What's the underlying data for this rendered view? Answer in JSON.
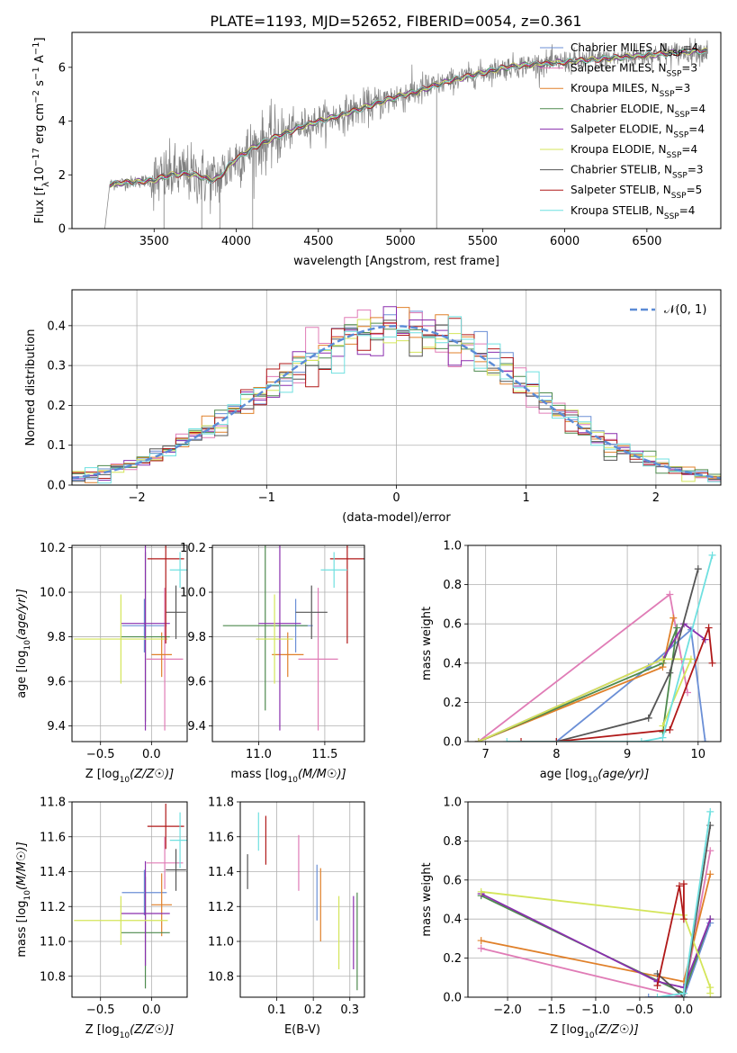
{
  "title": "PLATE=1193, MJD=52652, FIBERID=0054, z=0.361",
  "models": [
    {
      "name": "Chabrier MILES",
      "nssp": "4",
      "color": "#6b8fd6"
    },
    {
      "name": "Salpeter MILES",
      "nssp": "3",
      "color": "#e07cb6"
    },
    {
      "name": "Kroupa MILES",
      "nssp": "3",
      "color": "#e0802a"
    },
    {
      "name": "Chabrier ELODIE",
      "nssp": "4",
      "color": "#4e8a4e"
    },
    {
      "name": "Salpeter ELODIE",
      "nssp": "4",
      "color": "#8a2fae"
    },
    {
      "name": "Kroupa ELODIE",
      "nssp": "4",
      "color": "#d4e55a"
    },
    {
      "name": "Chabrier STELIB",
      "nssp": "3",
      "color": "#555555"
    },
    {
      "name": "Salpeter STELIB",
      "nssp": "5",
      "color": "#b01818"
    },
    {
      "name": "Kroupa STELIB",
      "nssp": "4",
      "color": "#6fe0e0"
    }
  ],
  "chart_data": [
    {
      "id": "spectrum",
      "type": "line",
      "xlabel": "wavelength [Angstrom, rest frame]",
      "ylabel": "Flux [f_λ 10^-17 erg cm^-2 s^-1 A^-1]",
      "xlim": [
        3000,
        6950
      ],
      "ylim": [
        0,
        7.3
      ],
      "xticks": [
        3500,
        4000,
        4500,
        5000,
        5500,
        6000,
        6500
      ],
      "yticks": [
        0,
        2,
        4,
        6
      ],
      "data_color": "#808080",
      "continuum": {
        "x": [
          3200,
          3230,
          3300,
          3400,
          3500,
          3600,
          3700,
          3780,
          3840,
          3900,
          3950,
          4000,
          4100,
          4200,
          4300,
          4400,
          4500,
          4600,
          4700,
          4800,
          4900,
          5000,
          5100,
          5200,
          5300,
          5400,
          5500,
          5600,
          5700,
          5800,
          5900,
          6000,
          6100,
          6200,
          6300,
          6400,
          6500,
          6600,
          6700,
          6800,
          6870
        ],
        "y": [
          0,
          1.65,
          1.7,
          1.75,
          1.8,
          2.0,
          2.05,
          1.95,
          1.8,
          1.9,
          2.3,
          2.6,
          3.0,
          3.3,
          3.55,
          3.8,
          4.0,
          4.15,
          4.35,
          4.55,
          4.75,
          4.95,
          5.1,
          5.3,
          5.5,
          5.65,
          5.8,
          5.95,
          6.05,
          6.1,
          6.15,
          6.2,
          6.25,
          6.3,
          6.35,
          6.4,
          6.45,
          6.5,
          6.55,
          6.6,
          6.6
        ]
      },
      "legend": "top-right"
    },
    {
      "id": "residuals",
      "type": "histogram",
      "xlabel": "(data-model)/error",
      "ylabel": "Normed distribution",
      "xlim": [
        -2.5,
        2.5
      ],
      "ylim": [
        0,
        0.49
      ],
      "xticks": [
        -2,
        -1,
        0,
        1,
        2
      ],
      "yticks": [
        0.0,
        0.1,
        0.2,
        0.3,
        0.4
      ],
      "bin_width": 0.1,
      "reference_label": "𝒩(0, 1)",
      "reference_color": "#5b8bd6",
      "legend": "top-right"
    },
    {
      "id": "age_vs_Z",
      "type": "errorbar",
      "xlabel": "Z [log10(Z/Z☉)]",
      "ylabel": "age  [log10(age/yr)]",
      "xlim": [
        -0.78,
        0.35
      ],
      "ylim": [
        9.33,
        10.21
      ],
      "xticks": [
        -0.5,
        0.0
      ],
      "yticks": [
        9.4,
        9.6,
        9.8,
        10.0,
        10.2
      ],
      "points": [
        {
          "x": -0.07,
          "y": 9.85,
          "xerr": 0.22,
          "yerr": 0.12
        },
        {
          "x": 0.13,
          "y": 9.7,
          "xerr": 0.18,
          "yerr": 0.32
        },
        {
          "x": 0.1,
          "y": 9.72,
          "xerr": 0.1,
          "yerr": 0.1
        },
        {
          "x": -0.06,
          "y": 9.8,
          "xerr": 0.24,
          "yerr": 0.38
        },
        {
          "x": -0.06,
          "y": 9.86,
          "xerr": 0.24,
          "yerr": 0.48
        },
        {
          "x": -0.3,
          "y": 9.79,
          "xerr": 0.46,
          "yerr": 0.2
        },
        {
          "x": 0.24,
          "y": 9.91,
          "xerr": 0.1,
          "yerr": 0.12
        },
        {
          "x": 0.14,
          "y": 10.15,
          "xerr": 0.18,
          "yerr": 0.38
        },
        {
          "x": 0.28,
          "y": 10.1,
          "xerr": 0.1,
          "yerr": 0.08
        }
      ]
    },
    {
      "id": "age_vs_mass",
      "type": "errorbar",
      "xlabel": "mass [log10(M/M☉)]",
      "ylabel": "",
      "xlim": [
        10.65,
        11.8
      ],
      "ylim": [
        9.33,
        10.21
      ],
      "xticks": [
        11.0,
        11.5
      ],
      "yticks": [
        9.4,
        9.6,
        9.8,
        10.0,
        10.2
      ],
      "points": [
        {
          "x": 11.28,
          "y": 9.85,
          "xerr": 0.13,
          "yerr": 0.12
        },
        {
          "x": 11.45,
          "y": 9.7,
          "xerr": 0.15,
          "yerr": 0.32
        },
        {
          "x": 11.22,
          "y": 9.72,
          "xerr": 0.12,
          "yerr": 0.1
        },
        {
          "x": 11.05,
          "y": 9.85,
          "xerr": 0.32,
          "yerr": 0.38
        },
        {
          "x": 11.16,
          "y": 9.86,
          "xerr": 0.16,
          "yerr": 0.48
        },
        {
          "x": 11.12,
          "y": 9.79,
          "xerr": 0.14,
          "yerr": 0.2
        },
        {
          "x": 11.4,
          "y": 9.91,
          "xerr": 0.12,
          "yerr": 0.12
        },
        {
          "x": 11.67,
          "y": 10.15,
          "xerr": 0.13,
          "yerr": 0.38
        },
        {
          "x": 11.57,
          "y": 10.1,
          "xerr": 0.1,
          "yerr": 0.08
        }
      ]
    },
    {
      "id": "weight_vs_age",
      "type": "line",
      "xlabel": "age  [log10(age/yr)]",
      "ylabel": "mass weight",
      "xlim": [
        6.75,
        10.32
      ],
      "ylim": [
        0,
        1.0
      ],
      "xticks": [
        7,
        8,
        9,
        10
      ],
      "yticks": [
        0.0,
        0.2,
        0.4,
        0.6,
        0.8,
        1.0
      ],
      "series": [
        {
          "name": "Chabrier MILES",
          "x": [
            8.0,
            9.3,
            9.9,
            10.1
          ],
          "y": [
            0.0,
            0.38,
            0.57,
            0.0
          ]
        },
        {
          "name": "Salpeter MILES",
          "x": [
            6.9,
            9.6,
            9.85
          ],
          "y": [
            0.0,
            0.75,
            0.25
          ]
        },
        {
          "name": "Kroupa MILES",
          "x": [
            6.9,
            9.5,
            9.65
          ],
          "y": [
            0.0,
            0.38,
            0.63
          ]
        },
        {
          "name": "Chabrier ELODIE",
          "x": [
            6.9,
            9.5,
            9.7,
            9.5
          ],
          "y": [
            0.0,
            0.4,
            0.58,
            0.05
          ]
        },
        {
          "name": "Salpeter ELODIE",
          "x": [
            6.9,
            9.5,
            9.8,
            10.1
          ],
          "y": [
            0.0,
            0.42,
            0.6,
            0.52
          ]
        },
        {
          "name": "Kroupa ELODIE",
          "x": [
            6.9,
            9.5,
            9.9,
            9.5
          ],
          "y": [
            0.0,
            0.42,
            0.42,
            0.08
          ]
        },
        {
          "name": "Chabrier STELIB",
          "x": [
            8.0,
            9.3,
            9.6,
            10.0
          ],
          "y": [
            0.0,
            0.12,
            0.35,
            0.88
          ]
        },
        {
          "name": "Salpeter STELIB",
          "x": [
            7.5,
            8.0,
            9.6,
            10.15,
            10.2
          ],
          "y": [
            0.0,
            0.0,
            0.06,
            0.58,
            0.4
          ]
        },
        {
          "name": "Kroupa STELIB",
          "x": [
            7.3,
            9.2,
            9.5,
            10.2
          ],
          "y": [
            0.0,
            0.0,
            0.02,
            0.95
          ]
        }
      ]
    },
    {
      "id": "mass_vs_Z",
      "type": "errorbar",
      "xlabel": "Z [log10(Z/Z☉)]",
      "ylabel": "mass [log10(M/M☉)]",
      "xlim": [
        -0.78,
        0.35
      ],
      "ylim": [
        10.68,
        11.8
      ],
      "xticks": [
        -0.5,
        0.0
      ],
      "yticks": [
        10.8,
        11.0,
        11.2,
        11.4,
        11.6,
        11.8
      ],
      "points": [
        {
          "x": -0.07,
          "y": 11.28,
          "xerr": 0.22,
          "yerr": 0.13
        },
        {
          "x": 0.13,
          "y": 11.45,
          "xerr": 0.18,
          "yerr": 0.15
        },
        {
          "x": 0.1,
          "y": 11.21,
          "xerr": 0.1,
          "yerr": 0.18
        },
        {
          "x": -0.06,
          "y": 11.05,
          "xerr": 0.24,
          "yerr": 0.32
        },
        {
          "x": -0.06,
          "y": 11.16,
          "xerr": 0.24,
          "yerr": 0.3
        },
        {
          "x": -0.3,
          "y": 11.12,
          "xerr": 0.46,
          "yerr": 0.14
        },
        {
          "x": 0.24,
          "y": 11.41,
          "xerr": 0.1,
          "yerr": 0.12
        },
        {
          "x": 0.14,
          "y": 11.66,
          "xerr": 0.18,
          "yerr": 0.13
        },
        {
          "x": 0.28,
          "y": 11.58,
          "xerr": 0.1,
          "yerr": 0.16
        }
      ]
    },
    {
      "id": "mass_vs_EBV",
      "type": "errorbar",
      "xlabel": "E(B-V)",
      "ylabel": "",
      "xlim": [
        0.0,
        0.34
      ],
      "ylim": [
        10.68,
        11.8
      ],
      "xticks": [
        0.1,
        0.2,
        0.3
      ],
      "yticks": [
        10.8,
        11.0,
        11.2,
        11.4,
        11.6,
        11.8
      ],
      "points": [
        {
          "x": 0.21,
          "y": 11.28,
          "xerr": 0.0,
          "yerr": 0.16
        },
        {
          "x": 0.16,
          "y": 11.45,
          "xerr": 0.0,
          "yerr": 0.16
        },
        {
          "x": 0.22,
          "y": 11.21,
          "xerr": 0.0,
          "yerr": 0.21
        },
        {
          "x": 0.32,
          "y": 11.0,
          "xerr": 0.0,
          "yerr": 0.28
        },
        {
          "x": 0.31,
          "y": 11.05,
          "xerr": 0.0,
          "yerr": 0.21
        },
        {
          "x": 0.27,
          "y": 11.05,
          "xerr": 0.0,
          "yerr": 0.21
        },
        {
          "x": 0.02,
          "y": 11.4,
          "xerr": 0.0,
          "yerr": 0.1
        },
        {
          "x": 0.07,
          "y": 11.58,
          "xerr": 0.0,
          "yerr": 0.14
        },
        {
          "x": 0.05,
          "y": 11.63,
          "xerr": 0.0,
          "yerr": 0.11
        }
      ]
    },
    {
      "id": "weight_vs_Z",
      "type": "line",
      "xlabel": "Z [log10(Z/Z☉)]",
      "ylabel": "mass weight",
      "xlim": [
        -2.45,
        0.42
      ],
      "ylim": [
        0,
        1.0
      ],
      "xticks": [
        -2.0,
        -1.5,
        -1.0,
        -0.5,
        0.0
      ],
      "yticks": [
        0.0,
        0.2,
        0.4,
        0.6,
        0.8,
        1.0
      ],
      "series": [
        {
          "name": "Chabrier MILES",
          "x": [
            -0.4,
            0.0,
            0.3
          ],
          "y": [
            0.0,
            0.0,
            0.38
          ]
        },
        {
          "name": "Salpeter MILES",
          "x": [
            -2.3,
            0.0,
            0.3
          ],
          "y": [
            0.25,
            0.0,
            0.75
          ]
        },
        {
          "name": "Kroupa MILES",
          "x": [
            -2.3,
            0.0,
            0.3
          ],
          "y": [
            0.29,
            0.08,
            0.63
          ]
        },
        {
          "name": "Chabrier ELODIE",
          "x": [
            -2.3,
            0.0,
            0.3
          ],
          "y": [
            0.52,
            0.02,
            0.4
          ]
        },
        {
          "name": "Salpeter ELODIE",
          "x": [
            -2.3,
            -0.3,
            0.0,
            0.3
          ],
          "y": [
            0.53,
            0.08,
            0.05,
            0.4
          ]
        },
        {
          "name": "Kroupa ELODIE",
          "x": [
            -2.3,
            0.0,
            0.3,
            0.3
          ],
          "y": [
            0.54,
            0.42,
            0.05,
            0.02
          ]
        },
        {
          "name": "Chabrier STELIB",
          "x": [
            -0.3,
            0.0,
            0.3
          ],
          "y": [
            0.12,
            0.0,
            0.88
          ]
        },
        {
          "name": "Salpeter STELIB",
          "x": [
            -0.3,
            -0.05,
            0.0,
            0.0
          ],
          "y": [
            0.06,
            0.57,
            0.4,
            0.58
          ]
        },
        {
          "name": "Kroupa STELIB",
          "x": [
            -0.3,
            0.0,
            0.3
          ],
          "y": [
            0.0,
            0.02,
            0.95
          ]
        }
      ]
    }
  ]
}
